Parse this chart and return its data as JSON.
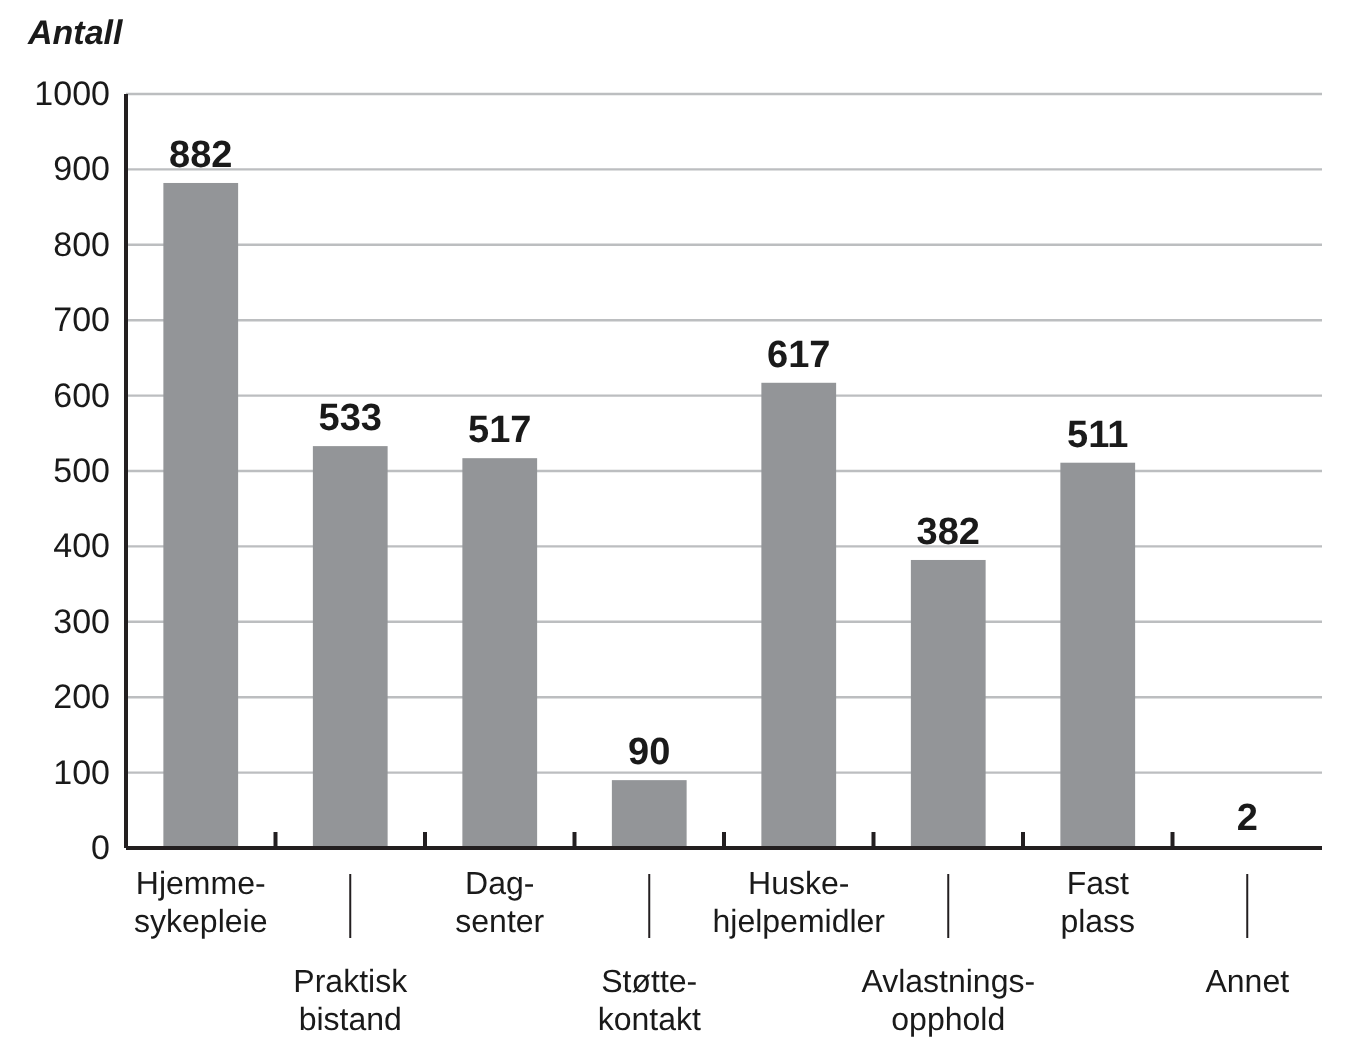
{
  "chart_data": {
    "type": "bar",
    "ylabel": "Antall",
    "categories": [
      "Hjemme-\nsykepleie",
      "Praktisk\nbistand",
      "Dag-\nsenter",
      "Støtte-\nkontakt",
      "Huske-\nhjelpemidler",
      "Avlastnings-\nopphold",
      "Fast\nplass",
      "Annet"
    ],
    "values": [
      882,
      533,
      517,
      90,
      617,
      382,
      511,
      2
    ],
    "color": "#939598",
    "ylim": [
      0,
      1000
    ],
    "yticks": [
      0,
      100,
      200,
      300,
      400,
      500,
      600,
      700,
      800,
      900,
      1000
    ],
    "grid": "y",
    "data_labels": true
  }
}
